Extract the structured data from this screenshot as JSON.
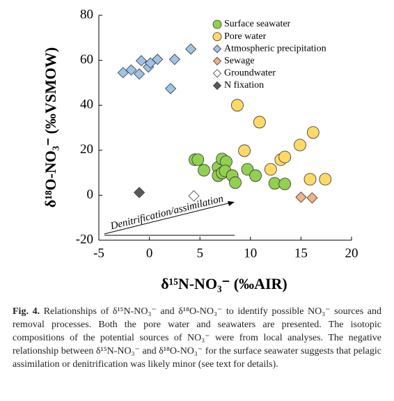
{
  "chart_data": {
    "type": "scatter",
    "xlabel": "δ¹⁵N-NO₃⁻ (‰AIR)",
    "ylabel": "δ¹⁸O-NO₃⁻ (‰VSMOW)",
    "xlim": [
      -5,
      20
    ],
    "xticks": [
      -5,
      0,
      5,
      10,
      15,
      20
    ],
    "ylim": [
      -20,
      80
    ],
    "yticks": [
      -20,
      0,
      20,
      40,
      60,
      80
    ],
    "annotation": "Denitrification/assimilation",
    "legend": "upper right",
    "series": [
      {
        "name": "Surface seawater",
        "color": "#92d050",
        "marker": "circle",
        "x": [
          4.5,
          4.8,
          5.4,
          6.8,
          7.2,
          7.6,
          6.8,
          7.2,
          7.5,
          8.2,
          8.5,
          9.7,
          10.5,
          12.4,
          13.4
        ],
        "y": [
          15.8,
          15.8,
          11.1,
          12.4,
          16.1,
          14.9,
          8.7,
          9.9,
          10.8,
          8.7,
          5.6,
          11.5,
          8.7,
          5.3,
          5.0
        ]
      },
      {
        "name": "Pore water",
        "color": "#ffd966",
        "marker": "circle",
        "x": [
          8.7,
          10.9,
          9.4,
          12.0,
          13.0,
          13.4,
          14.9,
          16.2,
          15.9,
          17.4
        ],
        "y": [
          40,
          32.5,
          19.8,
          11.5,
          15.8,
          17,
          22.3,
          27.9,
          7.1,
          7.1
        ]
      },
      {
        "name": "Atmospheric precipitation",
        "color": "#9dc3e6",
        "marker": "diamond",
        "x": [
          -2.6,
          -1.8,
          -1.0,
          -0.8,
          -0.1,
          0.1,
          0.8,
          2.5,
          2.1,
          4.1
        ],
        "y": [
          54.5,
          55.7,
          53.9,
          59.8,
          57,
          58.8,
          60.4,
          60.4,
          47.4,
          65
        ]
      },
      {
        "name": "Sewage",
        "color": "#f4b183",
        "marker": "diamond",
        "x": [
          15.0,
          16.1
        ],
        "y": [
          -0.9,
          -1.2
        ]
      },
      {
        "name": "Groundwater",
        "color": "#ffffff",
        "marker": "diamond",
        "x": [
          4.4
        ],
        "y": [
          -0.3
        ]
      },
      {
        "name": "N fixation",
        "color": "#595959",
        "marker": "diamond",
        "x": [
          -1.0
        ],
        "y": [
          1.2
        ]
      }
    ]
  },
  "caption": {
    "label": "Fig. 4.",
    "text": "Relationships of δ¹⁵N-NO₃⁻ and δ¹⁸O-NO₃⁻ to identify possible NO₃⁻ sources and removal processes. Both the pore water and seawaters are presented. The isotopic compositions of the potential sources of NO₃⁻ were from local analyses. The negative relationship between δ¹⁵N-NO₃⁻ and δ¹⁸O-NO₃⁻ for the surface seawater suggests that pelagic assimilation or denitrification was likely minor (see text for details)."
  }
}
